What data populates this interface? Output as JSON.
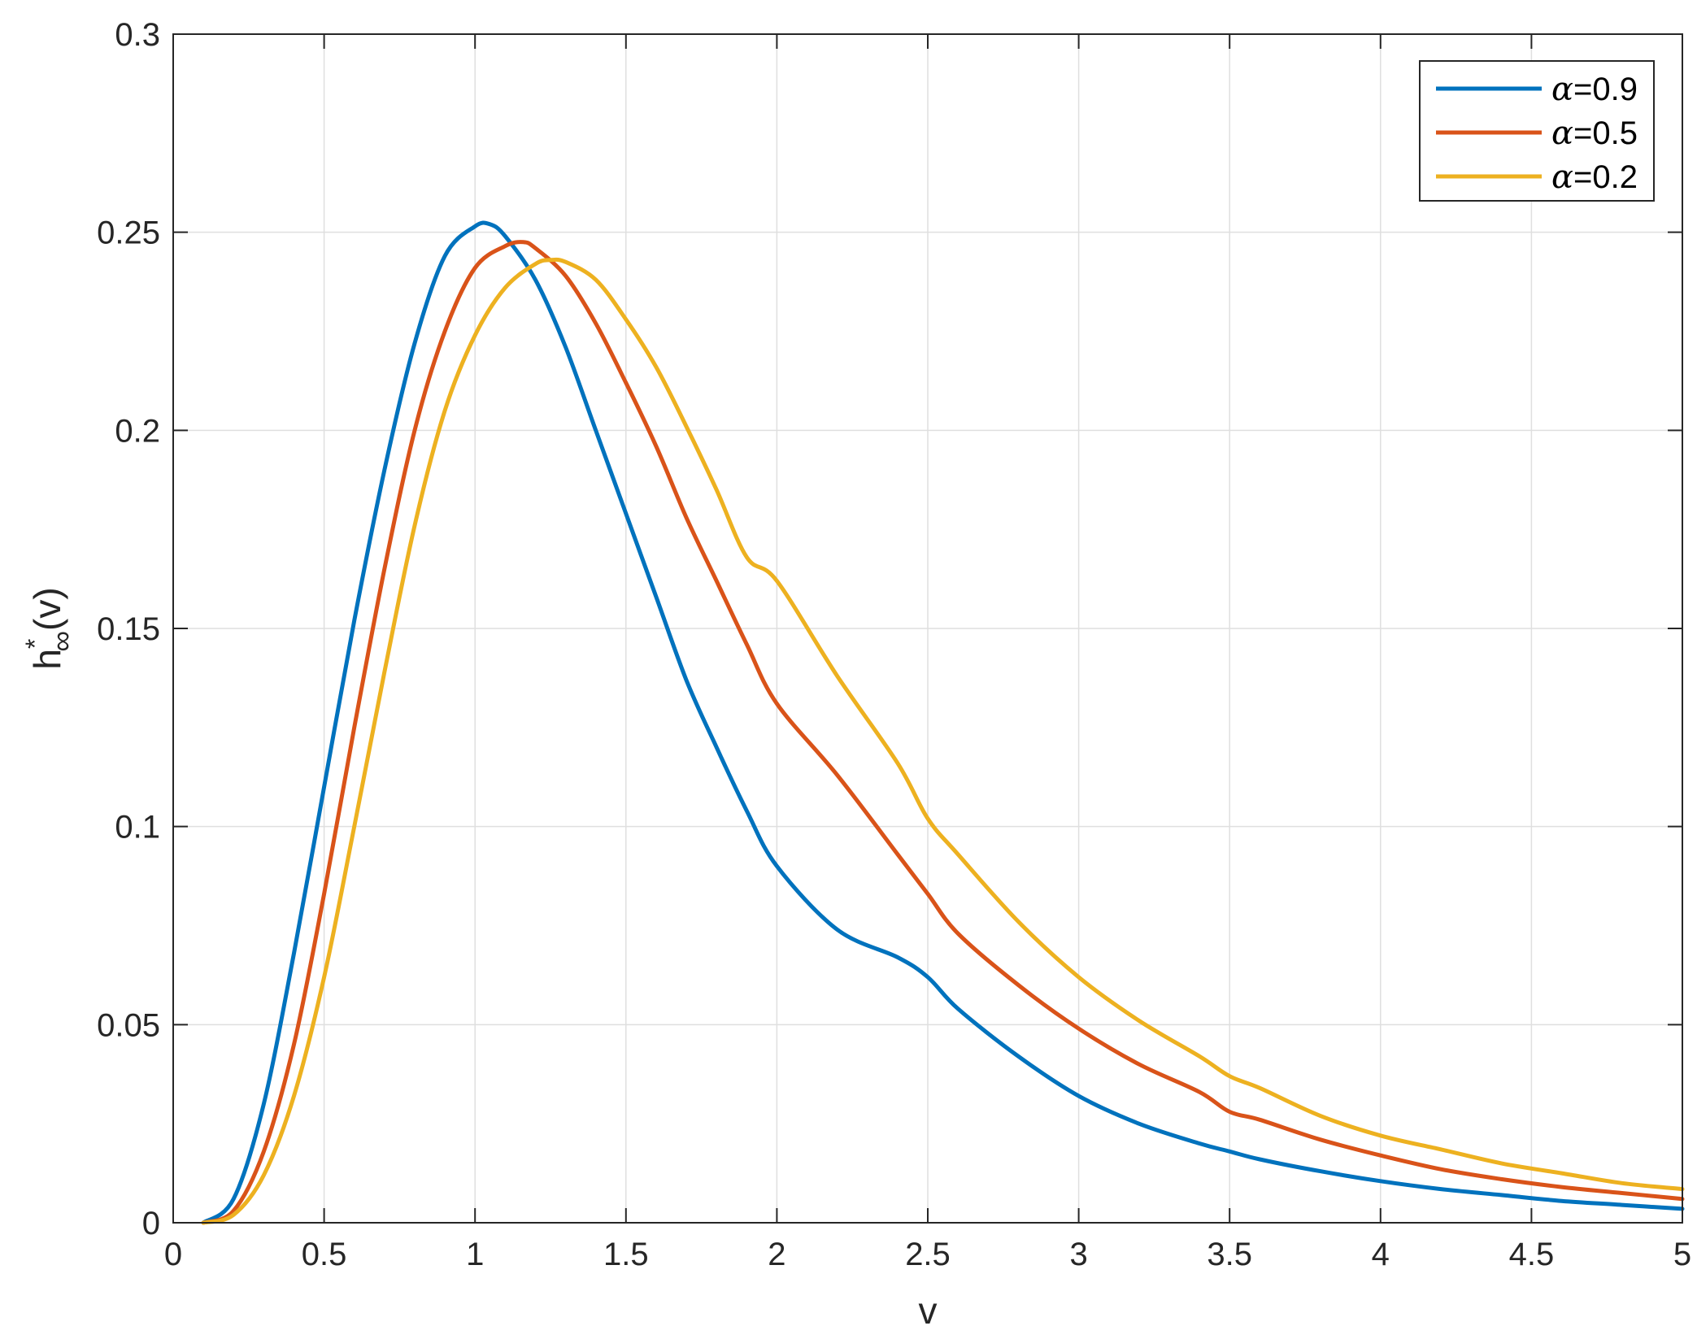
{
  "chart_data": {
    "type": "line",
    "title": "",
    "xlabel": "v",
    "ylabel": {
      "base": "h",
      "superscript": "*",
      "subscript": "∞",
      "suffix": "(v)"
    },
    "xlim": [
      0,
      5
    ],
    "ylim": [
      0,
      0.3
    ],
    "xticks": [
      0,
      0.5,
      1,
      1.5,
      2,
      2.5,
      3,
      3.5,
      4,
      4.5,
      5
    ],
    "xtick_labels": [
      "0",
      "0.5",
      "1",
      "1.5",
      "2",
      "2.5",
      "3",
      "3.5",
      "4",
      "4.5",
      "5"
    ],
    "yticks": [
      0,
      0.05,
      0.1,
      0.15,
      0.2,
      0.25,
      0.3
    ],
    "ytick_labels": [
      "0",
      "0.05",
      "0.1",
      "0.15",
      "0.2",
      "0.25",
      "0.3"
    ],
    "grid": true,
    "legend": {
      "position": "top-right"
    },
    "series": [
      {
        "name": "α=0.9",
        "symbol": "α",
        "value_text": "=0.9",
        "color": "#0072BD",
        "x": [
          0.1,
          0.2,
          0.3,
          0.4,
          0.5,
          0.6,
          0.7,
          0.8,
          0.9,
          1.0,
          1.05,
          1.1,
          1.2,
          1.3,
          1.4,
          1.5,
          1.6,
          1.7,
          1.8,
          1.9,
          2.0,
          2.2,
          2.4,
          2.5,
          2.6,
          2.8,
          3.0,
          3.2,
          3.4,
          3.5,
          3.6,
          3.8,
          4.0,
          4.2,
          4.4,
          4.6,
          4.8,
          5.0
        ],
        "y": [
          0.0,
          0.006,
          0.03,
          0.068,
          0.11,
          0.152,
          0.19,
          0.222,
          0.244,
          0.2515,
          0.252,
          0.249,
          0.238,
          0.221,
          0.2,
          0.179,
          0.158,
          0.137,
          0.12,
          0.104,
          0.09,
          0.074,
          0.067,
          0.062,
          0.054,
          0.042,
          0.032,
          0.025,
          0.02,
          0.018,
          0.016,
          0.013,
          0.0105,
          0.0085,
          0.007,
          0.0055,
          0.0045,
          0.0035
        ]
      },
      {
        "name": "α=0.5",
        "symbol": "α",
        "value_text": "=0.5",
        "color": "#D95319",
        "x": [
          0.1,
          0.2,
          0.3,
          0.4,
          0.5,
          0.6,
          0.7,
          0.8,
          0.9,
          1.0,
          1.1,
          1.16,
          1.2,
          1.3,
          1.4,
          1.5,
          1.6,
          1.7,
          1.8,
          1.9,
          2.0,
          2.2,
          2.4,
          2.5,
          2.6,
          2.8,
          3.0,
          3.2,
          3.4,
          3.5,
          3.6,
          3.8,
          4.0,
          4.2,
          4.4,
          4.6,
          4.8,
          5.0
        ],
        "y": [
          0.0,
          0.003,
          0.018,
          0.045,
          0.083,
          0.125,
          0.165,
          0.2,
          0.225,
          0.241,
          0.2465,
          0.2475,
          0.246,
          0.239,
          0.227,
          0.212,
          0.196,
          0.178,
          0.162,
          0.146,
          0.131,
          0.113,
          0.093,
          0.083,
          0.073,
          0.06,
          0.049,
          0.04,
          0.033,
          0.028,
          0.026,
          0.021,
          0.017,
          0.0135,
          0.011,
          0.009,
          0.0075,
          0.006
        ]
      },
      {
        "name": "α=0.2",
        "symbol": "α",
        "value_text": "=0.2",
        "color": "#EDB120",
        "x": [
          0.1,
          0.2,
          0.3,
          0.4,
          0.5,
          0.6,
          0.7,
          0.8,
          0.9,
          1.0,
          1.1,
          1.2,
          1.25,
          1.3,
          1.4,
          1.5,
          1.6,
          1.7,
          1.8,
          1.9,
          2.0,
          2.2,
          2.4,
          2.5,
          2.6,
          2.8,
          3.0,
          3.2,
          3.4,
          3.5,
          3.6,
          3.8,
          4.0,
          4.2,
          4.4,
          4.6,
          4.8,
          5.0
        ],
        "y": [
          0.0,
          0.002,
          0.012,
          0.032,
          0.062,
          0.1,
          0.139,
          0.176,
          0.205,
          0.224,
          0.236,
          0.242,
          0.243,
          0.2425,
          0.238,
          0.228,
          0.216,
          0.201,
          0.185,
          0.168,
          0.162,
          0.138,
          0.116,
          0.102,
          0.093,
          0.076,
          0.062,
          0.051,
          0.042,
          0.037,
          0.034,
          0.027,
          0.022,
          0.0185,
          0.015,
          0.0125,
          0.01,
          0.0085
        ]
      }
    ]
  }
}
